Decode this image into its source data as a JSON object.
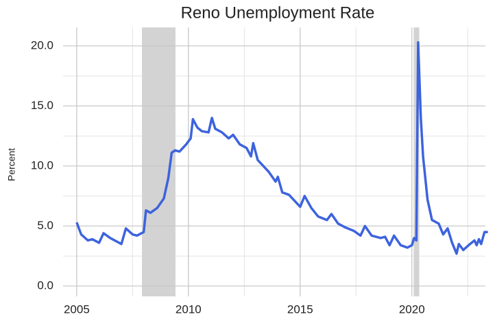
{
  "chart_data": {
    "type": "line",
    "title": "Reno Unemployment Rate",
    "y_label": "Percent",
    "x": [
      2005.0,
      2005.2,
      2005.5,
      2005.7,
      2006.0,
      2006.2,
      2006.5,
      2006.7,
      2007.0,
      2007.2,
      2007.5,
      2007.7,
      2008.0,
      2008.1,
      2008.3,
      2008.6,
      2008.9,
      2009.1,
      2009.25,
      2009.4,
      2009.6,
      2009.9,
      2010.1,
      2010.2,
      2010.4,
      2010.6,
      2010.9,
      2011.05,
      2011.2,
      2011.5,
      2011.8,
      2012.0,
      2012.3,
      2012.6,
      2012.8,
      2012.9,
      2013.1,
      2013.3,
      2013.6,
      2013.9,
      2014.0,
      2014.2,
      2014.5,
      2014.8,
      2015.0,
      2015.2,
      2015.5,
      2015.8,
      2016.2,
      2016.4,
      2016.7,
      2017.0,
      2017.4,
      2017.7,
      2017.9,
      2018.2,
      2018.6,
      2018.8,
      2019.0,
      2019.2,
      2019.5,
      2019.8,
      2020.0,
      2020.1,
      2020.2,
      2020.28,
      2020.4,
      2020.5,
      2020.7,
      2020.9,
      2021.2,
      2021.4,
      2021.6,
      2021.8,
      2022.0,
      2022.1,
      2022.3,
      2022.6,
      2022.8,
      2022.9,
      2023.0,
      2023.1,
      2023.25,
      2023.4
    ],
    "series": [
      {
        "color": "#3d63dd",
        "values": [
          5.3,
          4.3,
          3.8,
          3.9,
          3.6,
          4.4,
          4.0,
          3.8,
          3.5,
          4.8,
          4.3,
          4.2,
          4.5,
          6.3,
          6.1,
          6.5,
          7.3,
          9.0,
          11.1,
          11.3,
          11.2,
          11.8,
          12.3,
          13.9,
          13.2,
          12.9,
          12.8,
          14.0,
          13.1,
          12.8,
          12.3,
          12.6,
          11.8,
          11.5,
          10.8,
          11.9,
          10.5,
          10.1,
          9.5,
          8.7,
          9.1,
          7.8,
          7.6,
          7.0,
          6.6,
          7.5,
          6.5,
          5.8,
          5.5,
          6.0,
          5.2,
          4.9,
          4.6,
          4.2,
          5.0,
          4.2,
          4.0,
          4.1,
          3.4,
          4.2,
          3.4,
          3.2,
          3.4,
          4.0,
          3.8,
          20.3,
          14.0,
          10.8,
          7.2,
          5.5,
          5.2,
          4.3,
          4.8,
          3.6,
          2.7,
          3.5,
          3.0,
          3.5,
          3.8,
          3.4,
          3.9,
          3.5,
          4.5,
          4.5
        ]
      }
    ],
    "shaded_regions": [
      [
        2007.92,
        2009.42
      ],
      [
        2020.08,
        2020.33
      ]
    ],
    "shade_color": "#d3d3d3",
    "xlim": [
      2004.39,
      2023.29
    ],
    "xticks": [
      2005,
      2010,
      2015,
      2020
    ],
    "xminorticks": [
      2007.5,
      2012.5,
      2017.5,
      2022.5
    ],
    "ylim": [
      -0.86,
      21.54
    ],
    "yticks": [
      {
        "value": 0,
        "label": "0.0"
      },
      {
        "value": 5,
        "label": "5.0"
      },
      {
        "value": 10,
        "label": "10.0"
      },
      {
        "value": 15,
        "label": "15.0"
      },
      {
        "value": 20,
        "label": "20.0"
      }
    ],
    "yminorticks": [
      2.5,
      7.5,
      12.5,
      17.5
    ],
    "grid": true
  }
}
